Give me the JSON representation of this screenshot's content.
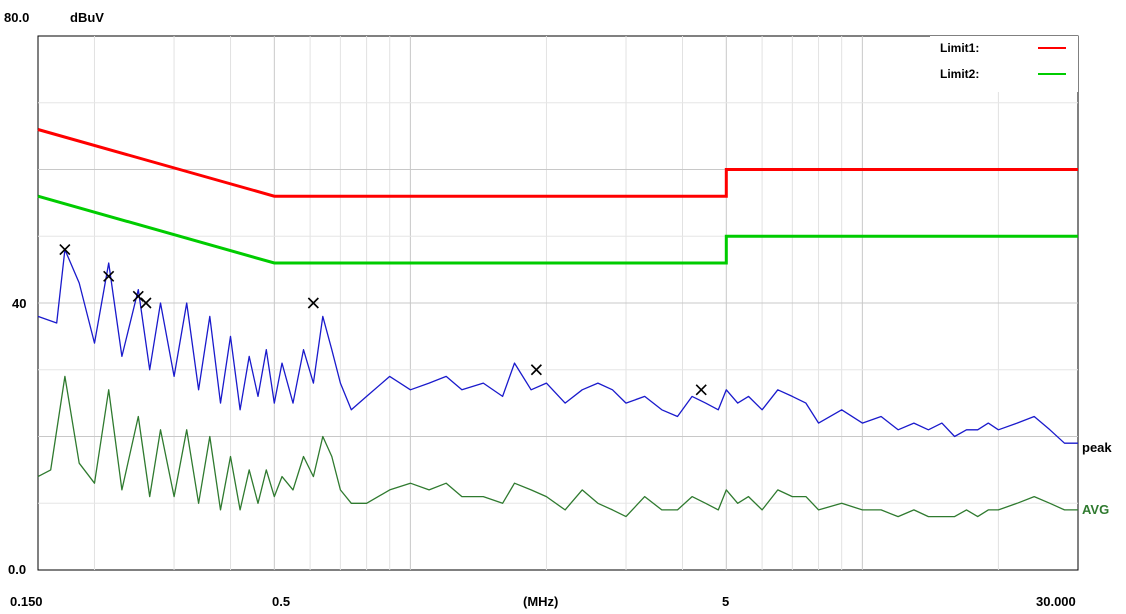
{
  "chart_data": {
    "type": "line",
    "ylabel": "dBuV",
    "xlabel": "(MHz)",
    "x_scale": "log",
    "xlim": [
      0.15,
      30
    ],
    "ylim": [
      0,
      80
    ],
    "y_ticks": [
      "80.0",
      "40",
      "0.0"
    ],
    "x_ticks": [
      "0.150",
      "0.5",
      "(MHz)",
      "5",
      "30.000"
    ],
    "grid": true,
    "legend_position": "top-right",
    "legend": [
      {
        "label": "Limit1:",
        "color": "#ff0000"
      },
      {
        "label": "Limit2:",
        "color": "#00cc00"
      }
    ],
    "limits": [
      {
        "name": "Limit1:",
        "color": "#ff0000",
        "points": [
          [
            0.15,
            66
          ],
          [
            0.5,
            56
          ],
          [
            5,
            56
          ],
          [
            5,
            60
          ],
          [
            30,
            60
          ]
        ]
      },
      {
        "name": "Limit2:",
        "color": "#00cc00",
        "points": [
          [
            0.15,
            56
          ],
          [
            0.5,
            46
          ],
          [
            5,
            46
          ],
          [
            5,
            50
          ],
          [
            30,
            50
          ]
        ]
      }
    ],
    "series": [
      {
        "name": "peak",
        "color": "#1a1acc",
        "x": [
          0.15,
          0.165,
          0.172,
          0.185,
          0.2,
          0.215,
          0.23,
          0.25,
          0.265,
          0.28,
          0.3,
          0.32,
          0.34,
          0.36,
          0.38,
          0.4,
          0.42,
          0.44,
          0.46,
          0.48,
          0.5,
          0.52,
          0.55,
          0.58,
          0.61,
          0.64,
          0.67,
          0.7,
          0.74,
          0.8,
          0.9,
          1.0,
          1.1,
          1.2,
          1.3,
          1.45,
          1.6,
          1.7,
          1.85,
          2.0,
          2.2,
          2.4,
          2.6,
          2.8,
          3.0,
          3.3,
          3.6,
          3.9,
          4.2,
          4.5,
          4.8,
          5.0,
          5.3,
          5.6,
          6.0,
          6.5,
          7.0,
          7.5,
          8.0,
          9.0,
          10,
          11,
          12,
          13,
          14,
          15,
          16,
          17,
          18,
          19,
          20,
          22,
          24,
          26,
          28,
          30
        ],
        "values": [
          38,
          37,
          48,
          43,
          34,
          46,
          32,
          42,
          30,
          40,
          29,
          40,
          27,
          38,
          25,
          35,
          24,
          32,
          26,
          33,
          25,
          31,
          25,
          33,
          28,
          38,
          33,
          28,
          24,
          26,
          29,
          27,
          28,
          29,
          27,
          28,
          26,
          31,
          27,
          28,
          25,
          27,
          28,
          27,
          25,
          26,
          24,
          23,
          26,
          25,
          24,
          27,
          25,
          26,
          24,
          27,
          26,
          25,
          22,
          24,
          22,
          23,
          21,
          22,
          21,
          22,
          20,
          21,
          21,
          22,
          21,
          22,
          23,
          21,
          19,
          19
        ]
      },
      {
        "name": "AVG",
        "color": "#2f7a2f",
        "x": [
          0.15,
          0.16,
          0.172,
          0.185,
          0.2,
          0.215,
          0.23,
          0.25,
          0.265,
          0.28,
          0.3,
          0.32,
          0.34,
          0.36,
          0.38,
          0.4,
          0.42,
          0.44,
          0.46,
          0.48,
          0.5,
          0.52,
          0.55,
          0.58,
          0.61,
          0.64,
          0.67,
          0.7,
          0.74,
          0.8,
          0.9,
          1.0,
          1.1,
          1.2,
          1.3,
          1.45,
          1.6,
          1.7,
          1.85,
          2.0,
          2.2,
          2.4,
          2.6,
          2.8,
          3.0,
          3.3,
          3.6,
          3.9,
          4.2,
          4.5,
          4.8,
          5.0,
          5.3,
          5.6,
          6.0,
          6.5,
          7.0,
          7.5,
          8.0,
          9.0,
          10,
          11,
          12,
          13,
          14,
          15,
          16,
          17,
          18,
          19,
          20,
          22,
          24,
          26,
          28,
          30
        ],
        "values": [
          14,
          15,
          29,
          16,
          13,
          27,
          12,
          23,
          11,
          21,
          11,
          21,
          10,
          20,
          9,
          17,
          9,
          15,
          10,
          15,
          11,
          14,
          12,
          17,
          14,
          20,
          17,
          12,
          10,
          10,
          12,
          13,
          12,
          13,
          11,
          11,
          10,
          13,
          12,
          11,
          9,
          12,
          10,
          9,
          8,
          11,
          9,
          9,
          11,
          10,
          9,
          12,
          10,
          11,
          9,
          12,
          11,
          11,
          9,
          10,
          9,
          9,
          8,
          9,
          8,
          8,
          8,
          9,
          8,
          9,
          9,
          10,
          11,
          10,
          9,
          9
        ]
      }
    ],
    "markers": [
      [
        0.172,
        48
      ],
      [
        0.215,
        44
      ],
      [
        0.25,
        41
      ],
      [
        0.26,
        40
      ],
      [
        0.61,
        40
      ],
      [
        1.9,
        30
      ],
      [
        4.4,
        27
      ]
    ]
  }
}
